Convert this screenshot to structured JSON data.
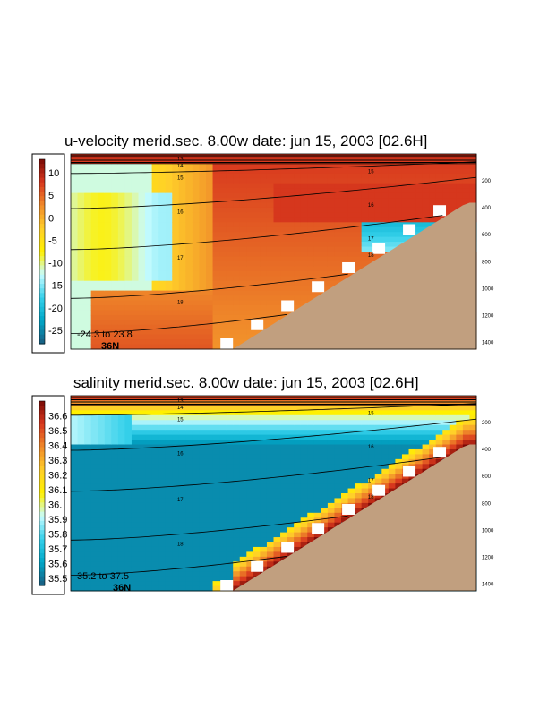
{
  "chart_data": [
    {
      "type": "heatmap",
      "title": "u-velocity merid.sec.  8.00w   date: jun 15, 2003   [02.6H]",
      "variable": "u-velocity",
      "colorbar": {
        "ticks": [
          "10",
          "5",
          "0",
          "-5",
          "-10",
          "-15",
          "-20",
          "-25"
        ],
        "range": [
          -28,
          13
        ],
        "colors": [
          "#1a5d80",
          "#00a7c8",
          "#35d0ea",
          "#c8fcff",
          "#fff000",
          "#ffcf2a",
          "#f08a2a",
          "#d8381e",
          "#7a0a06"
        ]
      },
      "depth_ticks": [
        "200",
        "400",
        "600",
        "800",
        "1000",
        "1200",
        "1400"
      ],
      "depth_range": [
        0,
        1450
      ],
      "range_text": "-24.3 to  23.8",
      "latitude_label": "36N",
      "contours": {
        "labels": [
          "13",
          "14",
          "15",
          "16",
          "17",
          "18"
        ],
        "label_points": [
          {
            "label": "13",
            "col": 0.27,
            "depth": 35
          },
          {
            "label": "14",
            "col": 0.27,
            "depth": 85
          },
          {
            "label": "15",
            "col": 0.27,
            "depth": 175
          },
          {
            "label": "16",
            "col": 0.27,
            "depth": 430
          },
          {
            "label": "17",
            "col": 0.27,
            "depth": 770
          },
          {
            "label": "18",
            "col": 0.27,
            "depth": 1100
          },
          {
            "label": "15",
            "col": 0.74,
            "depth": 130
          },
          {
            "label": "16",
            "col": 0.74,
            "depth": 380
          },
          {
            "label": "17",
            "col": 0.74,
            "depth": 630
          },
          {
            "label": "18",
            "col": 0.74,
            "depth": 750
          }
        ]
      }
    },
    {
      "type": "heatmap",
      "title": "salinity merid.sec.  8.00w   date: jun 15, 2003   [02.6H]",
      "variable": "salinity",
      "colorbar": {
        "ticks": [
          "36.6",
          "36.5",
          "36.4",
          "36.3",
          "36.2",
          "36.1",
          "36.",
          "35.9",
          "35.8",
          "35.7",
          "35.6",
          "35.5"
        ],
        "range": [
          35.45,
          36.7
        ],
        "colors": [
          "#1a5d80",
          "#00a7c8",
          "#35d0ea",
          "#c8fcff",
          "#fff000",
          "#ffcf2a",
          "#f08a2a",
          "#d8381e",
          "#7a0a06"
        ]
      },
      "depth_ticks": [
        "200",
        "400",
        "600",
        "800",
        "1000",
        "1200",
        "1400"
      ],
      "depth_range": [
        0,
        1450
      ],
      "range_text": "35.2 to  37.5",
      "latitude_label": "36N",
      "contours": {
        "labels": [
          "13",
          "14",
          "15",
          "16",
          "17",
          "18"
        ],
        "label_points": [
          {
            "label": "13",
            "col": 0.27,
            "depth": 35
          },
          {
            "label": "14",
            "col": 0.27,
            "depth": 85
          },
          {
            "label": "15",
            "col": 0.27,
            "depth": 175
          },
          {
            "label": "16",
            "col": 0.27,
            "depth": 430
          },
          {
            "label": "17",
            "col": 0.27,
            "depth": 770
          },
          {
            "label": "18",
            "col": 0.27,
            "depth": 1100
          },
          {
            "label": "15",
            "col": 0.74,
            "depth": 130
          },
          {
            "label": "16",
            "col": 0.74,
            "depth": 380
          },
          {
            "label": "17",
            "col": 0.74,
            "depth": 630
          },
          {
            "label": "18",
            "col": 0.74,
            "depth": 750
          }
        ]
      }
    }
  ],
  "colors": {
    "seafloor": "#c19f7f",
    "land_mask": "#ffffff",
    "contour": "#000000"
  }
}
